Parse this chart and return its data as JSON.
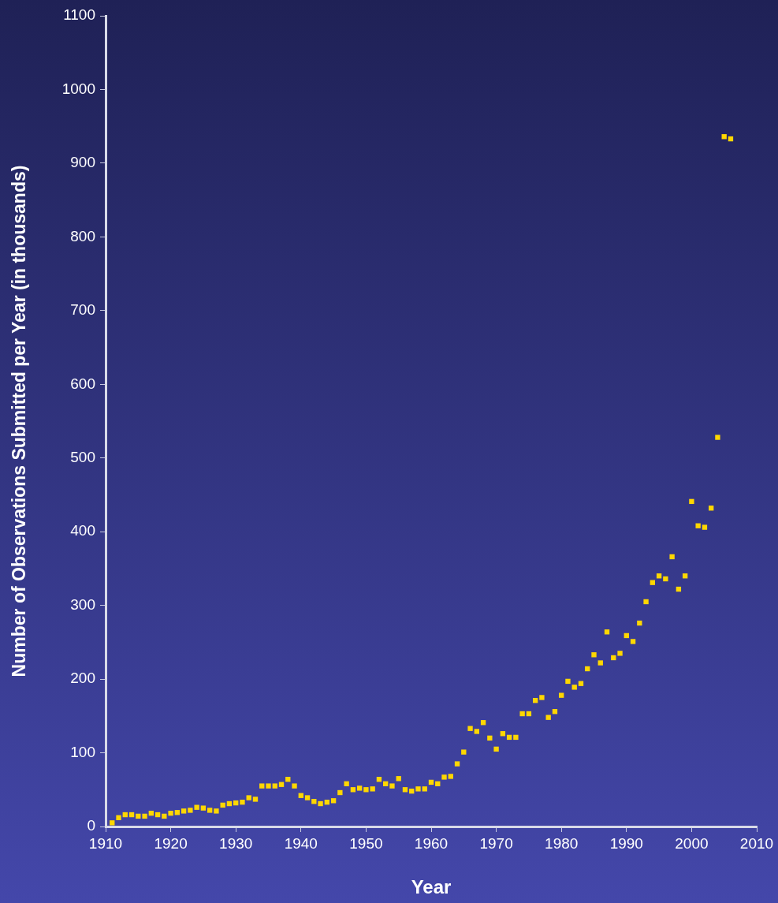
{
  "chart_data": {
    "type": "scatter",
    "xlabel": "Year",
    "ylabel": "Number of Observations Submitted per Year (in thousands)",
    "x": [
      1911,
      1912,
      1913,
      1914,
      1915,
      1916,
      1917,
      1918,
      1919,
      1920,
      1921,
      1922,
      1923,
      1924,
      1925,
      1926,
      1927,
      1928,
      1929,
      1930,
      1931,
      1932,
      1933,
      1934,
      1935,
      1936,
      1937,
      1938,
      1939,
      1940,
      1941,
      1942,
      1943,
      1944,
      1945,
      1946,
      1947,
      1948,
      1949,
      1950,
      1951,
      1952,
      1953,
      1954,
      1955,
      1956,
      1957,
      1958,
      1959,
      1960,
      1961,
      1962,
      1963,
      1964,
      1965,
      1966,
      1967,
      1968,
      1969,
      1970,
      1971,
      1972,
      1973,
      1974,
      1975,
      1976,
      1977,
      1978,
      1979,
      1980,
      1981,
      1982,
      1983,
      1984,
      1985,
      1986,
      1987,
      1988,
      1989,
      1990,
      1991,
      1992,
      1993,
      1994,
      1995,
      1996,
      1997,
      1998,
      1999,
      2000,
      2001,
      2002,
      2003,
      2004,
      2005,
      2006
    ],
    "series": [
      {
        "color": "#ffd700",
        "values": [
          5,
          12,
          16,
          16,
          14,
          14,
          18,
          16,
          14,
          18,
          19,
          21,
          22,
          26,
          25,
          22,
          21,
          29,
          31,
          32,
          33,
          39,
          37,
          55,
          55,
          55,
          57,
          64,
          55,
          42,
          39,
          34,
          31,
          33,
          35,
          46,
          58,
          50,
          52,
          50,
          51,
          64,
          58,
          55,
          65,
          50,
          48,
          51,
          51,
          60,
          58,
          67,
          68,
          85,
          101,
          133,
          129,
          141,
          120,
          105,
          126,
          121,
          121,
          153,
          153,
          171,
          175,
          148,
          156,
          178,
          197,
          189,
          194,
          214,
          233,
          222,
          264,
          229,
          235,
          259,
          251,
          276,
          305,
          331,
          340,
          336,
          366,
          322,
          340,
          441,
          408,
          406,
          432,
          528,
          936,
          933
        ]
      }
    ],
    "xlim": [
      1910,
      2010
    ],
    "xticks": [
      1910,
      1920,
      1930,
      1940,
      1950,
      1960,
      1970,
      1980,
      1990,
      2000,
      2010
    ],
    "ylim": [
      0,
      1100
    ],
    "yticks": [
      0,
      100,
      200,
      300,
      400,
      500,
      600,
      700,
      800,
      900,
      1000,
      1100
    ],
    "grid": false,
    "legend": false,
    "marker": "square"
  }
}
